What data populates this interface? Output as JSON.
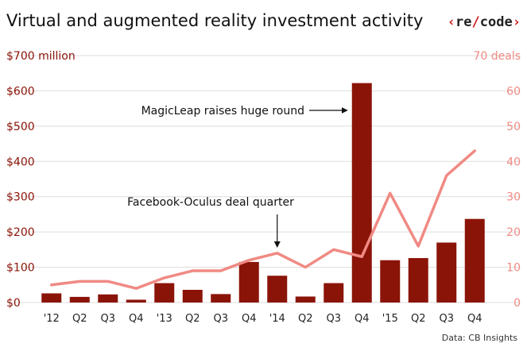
{
  "chart_data": {
    "type": "bar",
    "title": "Virtual and augmented reality investment activity",
    "brand": "‹re/code›",
    "categories": [
      "'12",
      "Q2",
      "Q3",
      "Q4",
      "'13",
      "Q2",
      "Q3",
      "Q4",
      "'14",
      "Q2",
      "Q3",
      "Q4",
      "'15",
      "Q2",
      "Q3",
      "Q4"
    ],
    "series": [
      {
        "name": "",
        "axis": "left",
        "kind": "bar",
        "values": [
          26,
          16,
          23,
          8,
          55,
          36,
          24,
          115,
          76,
          17,
          55,
          622,
          120,
          126,
          170,
          237
        ]
      },
      {
        "name": "",
        "axis": "right",
        "kind": "line",
        "values": [
          5,
          6,
          6,
          4,
          7,
          9,
          9,
          12,
          14,
          10,
          15,
          13,
          31,
          16,
          36,
          43
        ]
      }
    ],
    "y_left": {
      "ylim": [
        0,
        700
      ],
      "ticks": [
        0,
        100,
        200,
        300,
        400,
        500,
        600,
        700
      ],
      "tick_labels": [
        "$0",
        "$100",
        "$200",
        "$300",
        "$400",
        "$500",
        "$600",
        "$700 million"
      ]
    },
    "y_right": {
      "ylim": [
        0,
        70
      ],
      "ticks": [
        0,
        10,
        20,
        30,
        40,
        50,
        60,
        70
      ],
      "tick_labels": [
        "0",
        "10",
        "20",
        "30",
        "40",
        "50",
        "60",
        "70 deals"
      ]
    },
    "grid": true,
    "annotations": [
      {
        "text": "MagicLeap raises huge round",
        "target_index": 11
      },
      {
        "text": "Facebook-Oculus deal quarter",
        "target_index": 8
      }
    ],
    "source": "Data: CB Insights",
    "colors": {
      "bar": "#8b1408",
      "line": "#f08a84",
      "left_axis": "#8b1408",
      "right_axis": "#f08a84",
      "grid": "#dddddd",
      "brand_bracket": "#cc1f1f",
      "brand_text": "#222222"
    }
  }
}
